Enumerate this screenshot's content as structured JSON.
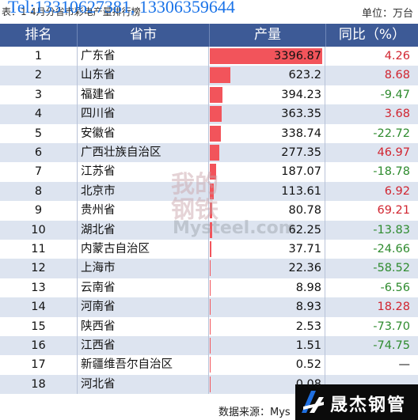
{
  "caption": {
    "left_text": "表：1-4月分省市彩电产量排行榜",
    "overlay_text": "Tel:13310627381, 13306359644",
    "unit": "单位：万台"
  },
  "header": {
    "rank": "排名",
    "province": "省市",
    "production": "产量",
    "yoy": "同比（%）"
  },
  "rows": [
    {
      "rank": "1",
      "province": "广东省",
      "production": "3396.87",
      "yoy": "4.26",
      "sign": "pos"
    },
    {
      "rank": "2",
      "province": "山东省",
      "production": "623.2",
      "yoy": "8.68",
      "sign": "pos"
    },
    {
      "rank": "3",
      "province": "福建省",
      "production": "394.23",
      "yoy": "-9.47",
      "sign": "neg"
    },
    {
      "rank": "4",
      "province": "四川省",
      "production": "363.35",
      "yoy": "3.68",
      "sign": "pos"
    },
    {
      "rank": "5",
      "province": "安徽省",
      "production": "338.74",
      "yoy": "-22.72",
      "sign": "neg"
    },
    {
      "rank": "6",
      "province": "广西壮族自治区",
      "production": "277.35",
      "yoy": "46.97",
      "sign": "pos"
    },
    {
      "rank": "7",
      "province": "江苏省",
      "production": "187.07",
      "yoy": "-18.78",
      "sign": "neg"
    },
    {
      "rank": "8",
      "province": "北京市",
      "production": "113.61",
      "yoy": "6.92",
      "sign": "pos"
    },
    {
      "rank": "9",
      "province": "贵州省",
      "production": "80.78",
      "yoy": "69.21",
      "sign": "pos"
    },
    {
      "rank": "10",
      "province": "湖北省",
      "production": "62.25",
      "yoy": "-13.83",
      "sign": "neg"
    },
    {
      "rank": "11",
      "province": "内蒙古自治区",
      "production": "37.71",
      "yoy": "-24.66",
      "sign": "neg"
    },
    {
      "rank": "12",
      "province": "上海市",
      "production": "22.36",
      "yoy": "-58.52",
      "sign": "neg"
    },
    {
      "rank": "13",
      "province": "云南省",
      "production": "8.98",
      "yoy": "-6.56",
      "sign": "neg"
    },
    {
      "rank": "14",
      "province": "河南省",
      "production": "8.93",
      "yoy": "18.28",
      "sign": "pos"
    },
    {
      "rank": "15",
      "province": "陕西省",
      "production": "2.53",
      "yoy": "-73.70",
      "sign": "neg"
    },
    {
      "rank": "16",
      "province": "江西省",
      "production": "1.51",
      "yoy": "-74.75",
      "sign": "neg"
    },
    {
      "rank": "17",
      "province": "新疆维吾尔自治区",
      "production": "0.52",
      "yoy": "—",
      "sign": "dash"
    },
    {
      "rank": "18",
      "province": "河北省",
      "production": "0.08",
      "yoy": "",
      "sign": "dash"
    }
  ],
  "bar_max": 3396.87,
  "colors": {
    "header_bg": "#3d5a96",
    "bar": "#f2545b",
    "positive": "#d1242f",
    "negative": "#2e8b2e",
    "row_alt": "#dde4f0"
  },
  "watermark": {
    "cn": "我的钢铁",
    "en": "Mysteel.com"
  },
  "footer": {
    "source": "数据来源：Mys"
  },
  "brand": {
    "name": "晟杰钢管",
    "icon": "sj-logo-icon"
  }
}
